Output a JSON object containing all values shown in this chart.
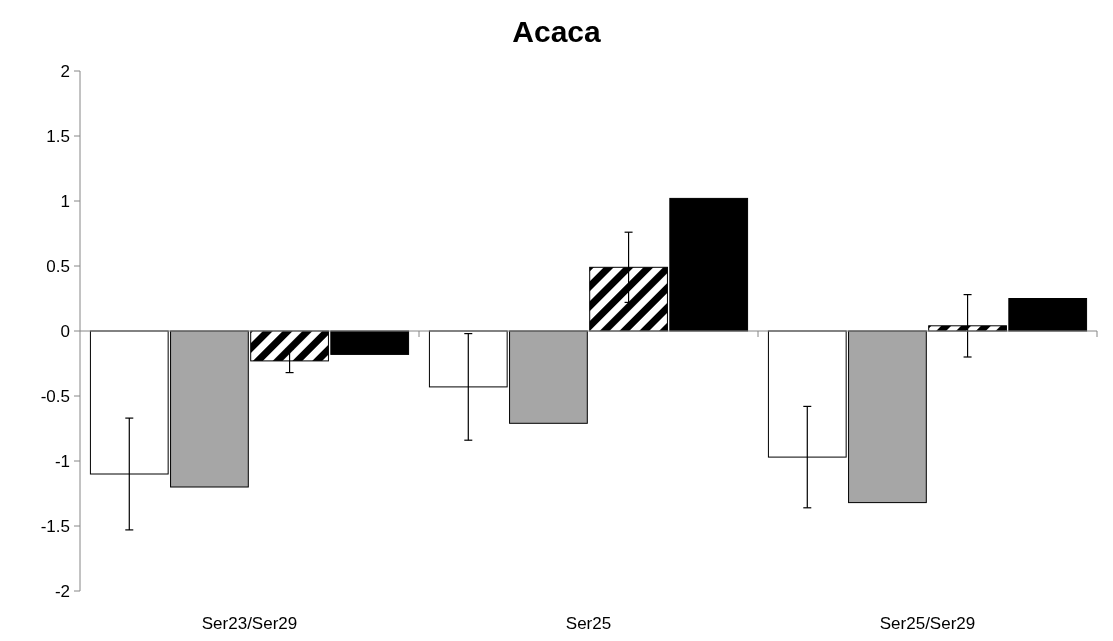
{
  "chart_data": {
    "type": "bar",
    "title": "Acaca",
    "categories": [
      "Ser23/Ser29",
      "Ser25",
      "Ser25/Ser29"
    ],
    "series": [
      {
        "color": "#ffffff",
        "values": [
          -1.1,
          -0.43,
          -0.97
        ],
        "errors": [
          0.43,
          0.41,
          0.39
        ]
      },
      {
        "color": "#a6a6a6",
        "values": [
          -1.2,
          -0.71,
          -1.32
        ]
      },
      {
        "color": "#000000",
        "values": [
          -0.23,
          0.49,
          0.04
        ],
        "errors": [
          0.09,
          0.27,
          0.24
        ]
      },
      {
        "color": "#000000",
        "values": [
          -0.18,
          1.02,
          0.25
        ]
      }
    ],
    "ylim": [
      -2,
      2
    ],
    "yticks": [
      -2,
      -1.5,
      -1,
      -0.5,
      0,
      0.5,
      1,
      1.5,
      2
    ]
  }
}
